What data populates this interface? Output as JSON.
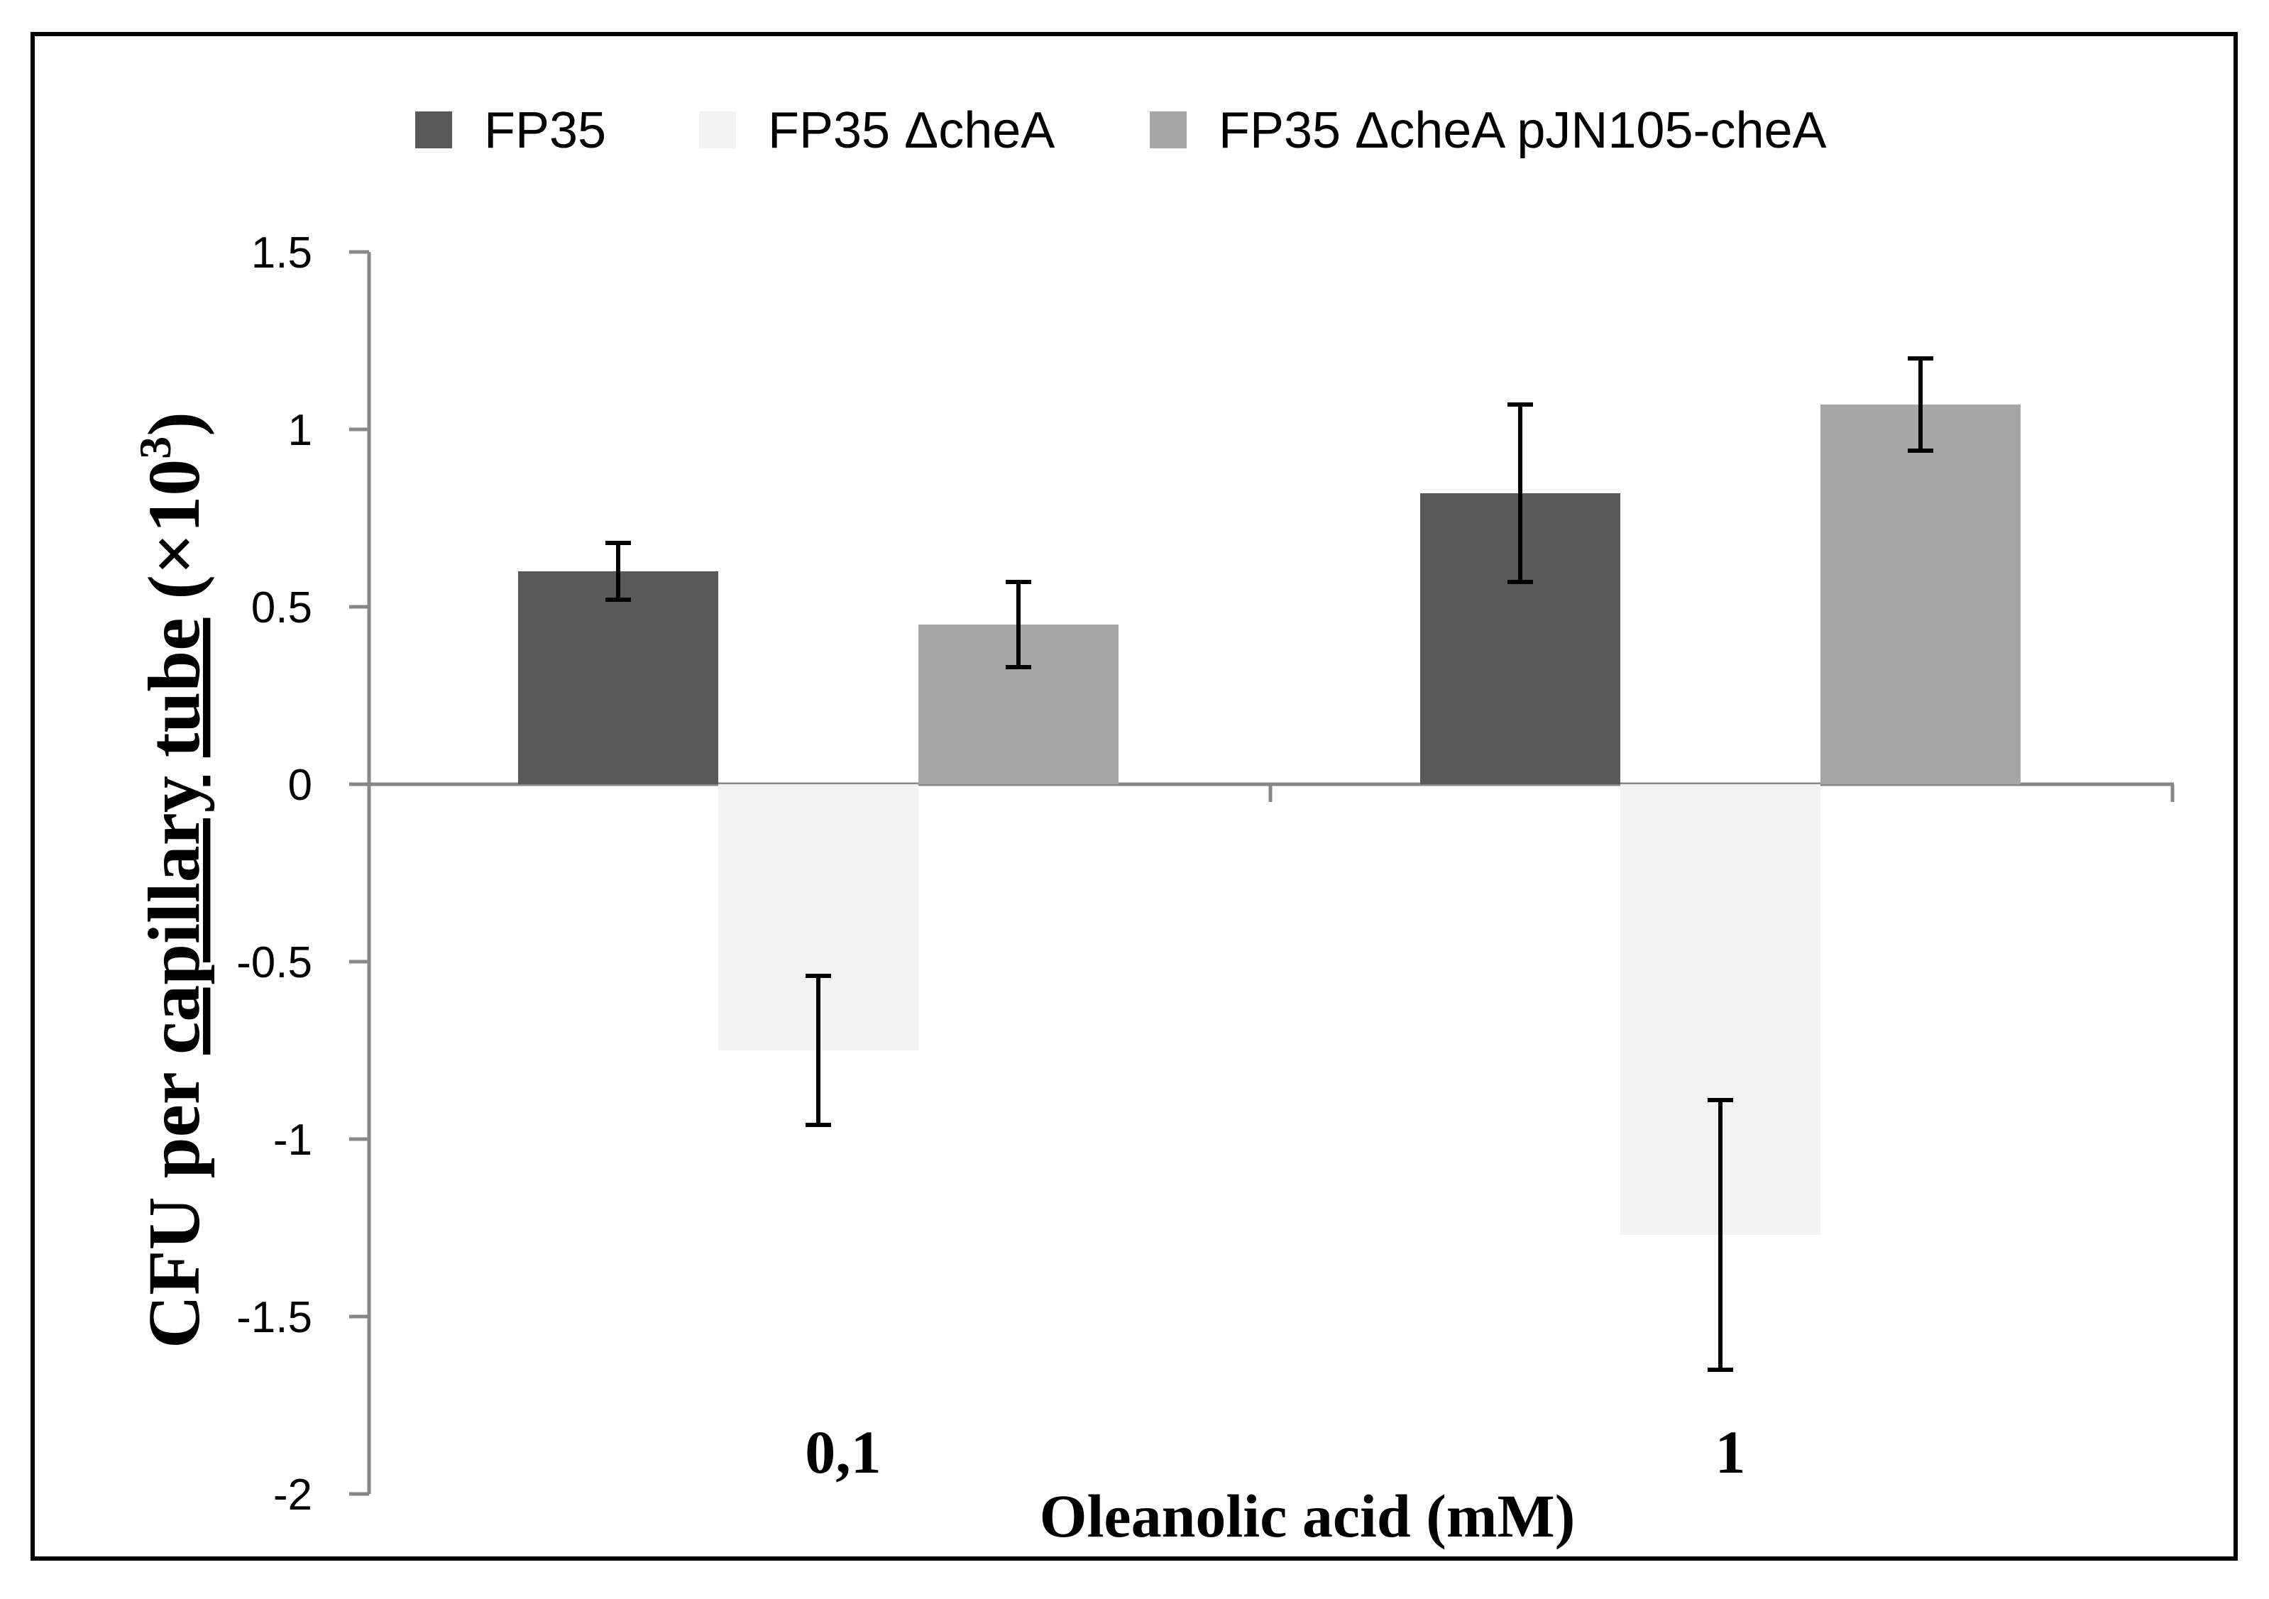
{
  "chart_data": {
    "type": "bar",
    "title": "",
    "xlabel": "Oleanolic acid (mM)",
    "ylabel_parts": {
      "cfu": "CFU",
      "per": "per",
      "capillary": "capillary",
      "tube": "tube",
      "open": "(×10",
      "exponent": "3",
      "close": ")"
    },
    "categories": [
      "0,1",
      "1"
    ],
    "series": [
      {
        "name": "FP35",
        "color": "#595959",
        "values": [
          0.6,
          0.82
        ],
        "errors": [
          0.08,
          0.25
        ]
      },
      {
        "name": "FP35 ΔcheA",
        "color": "#f2f2f2",
        "values": [
          -0.75,
          -1.27
        ],
        "errors": [
          0.21,
          0.38
        ]
      },
      {
        "name": "FP35 ΔcheA pJN105-cheA",
        "color": "#a6a6a6",
        "values": [
          0.45,
          1.07
        ],
        "errors": [
          0.12,
          0.13
        ]
      }
    ],
    "ylim": [
      -2,
      1.5
    ],
    "yticks": [
      "1.5",
      "1",
      "0.5",
      "0",
      "-0.5",
      "-1",
      "-1.5",
      "-2"
    ],
    "ytick_values": [
      1.5,
      1,
      0.5,
      0,
      -0.5,
      -1,
      -1.5,
      -2
    ],
    "legend_position": "top",
    "grid": false
  }
}
